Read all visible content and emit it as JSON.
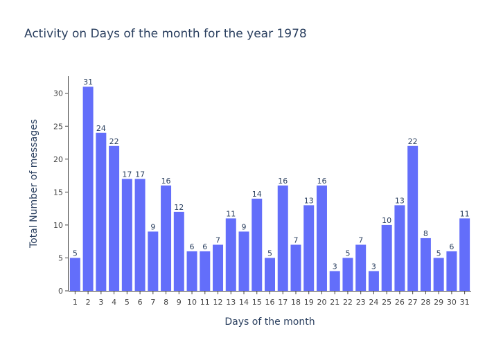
{
  "chart_data": {
    "type": "bar",
    "title": "Activity on Days of the month for the year 1978",
    "xlabel": "Days of the month",
    "ylabel": "Total Number of messages",
    "categories": [
      "1",
      "2",
      "3",
      "4",
      "5",
      "6",
      "7",
      "8",
      "9",
      "10",
      "11",
      "12",
      "13",
      "14",
      "15",
      "16",
      "17",
      "18",
      "19",
      "20",
      "21",
      "22",
      "23",
      "24",
      "25",
      "26",
      "27",
      "28",
      "29",
      "30",
      "31"
    ],
    "values": [
      5,
      31,
      24,
      22,
      17,
      17,
      9,
      16,
      12,
      6,
      6,
      7,
      11,
      9,
      14,
      5,
      16,
      7,
      13,
      16,
      3,
      5,
      7,
      3,
      10,
      13,
      22,
      8,
      5,
      6,
      11
    ],
    "ylim": [
      0,
      32.6
    ],
    "yticks": [
      0,
      5,
      10,
      15,
      20,
      25,
      30
    ],
    "grid": false,
    "data_labels": true,
    "colors": {
      "bar": "#636efa",
      "text": "#2a3f5f",
      "tick_text": "#444444",
      "axis_line": "#444444"
    }
  }
}
